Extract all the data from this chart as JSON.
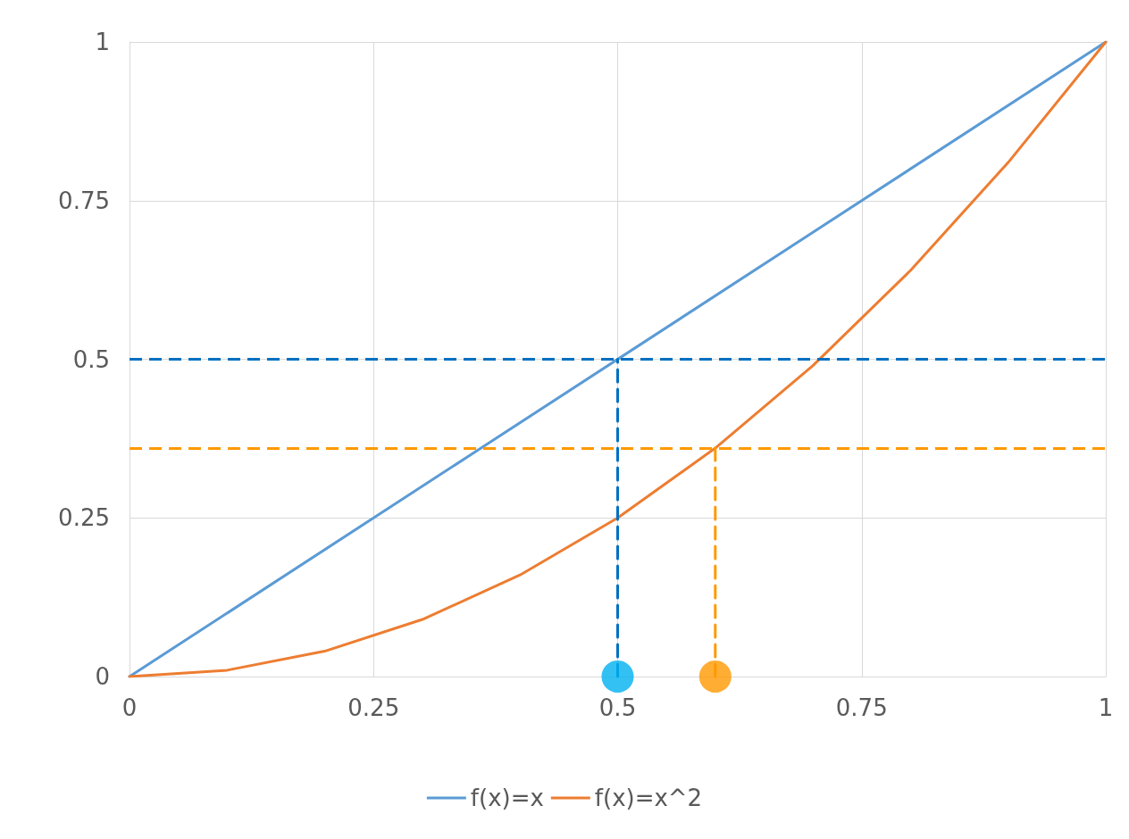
{
  "chart_data": {
    "type": "line",
    "xlim": [
      0,
      1
    ],
    "xticks": [
      0,
      0.25,
      0.5,
      0.75,
      1
    ],
    "ylim": [
      0,
      1
    ],
    "yticks": [
      0,
      0.25,
      0.5,
      0.75,
      1
    ],
    "grid": true,
    "legend": "bottom",
    "marker": "none",
    "line_style": "solid",
    "series": [
      {
        "name": "f(x)=x",
        "color": "#5b9bd5",
        "x": [
          0,
          1
        ],
        "values": [
          0,
          1
        ]
      },
      {
        "name": "f(x)=x^2",
        "color": "#ed7d31",
        "x": [
          0,
          0.1,
          0.2,
          0.3,
          0.4,
          0.5,
          0.6,
          0.7,
          0.8,
          0.9,
          1
        ],
        "values": [
          0,
          0.01,
          0.04,
          0.09,
          0.16,
          0.25,
          0.36,
          0.49,
          0.64,
          0.81,
          1
        ]
      },
      {
        "type": "line",
        "color": "#0070c0",
        "line_style": "dashed",
        "x": [
          0.5,
          0.5
        ],
        "values": [
          0,
          0.5
        ]
      },
      {
        "type": "line",
        "color": "#ff9900",
        "line_style": "dashed",
        "x": [
          0.6,
          0.6
        ],
        "values": [
          0,
          0.36
        ]
      },
      {
        "type": "scatter",
        "color": "#00b0f0",
        "marker": "circle",
        "x": [
          0.5
        ],
        "values": [
          0
        ]
      },
      {
        "type": "scatter",
        "color": "#ff9900",
        "marker": "circle",
        "x": [
          0.6
        ],
        "values": [
          0
        ]
      }
    ],
    "ref_lines": [
      {
        "axis": "y",
        "value": 0.5,
        "color": "#0070c0",
        "line_style": "dashed"
      },
      {
        "axis": "y",
        "value": 0.36,
        "color": "#ff9900",
        "line_style": "dashed"
      }
    ]
  }
}
